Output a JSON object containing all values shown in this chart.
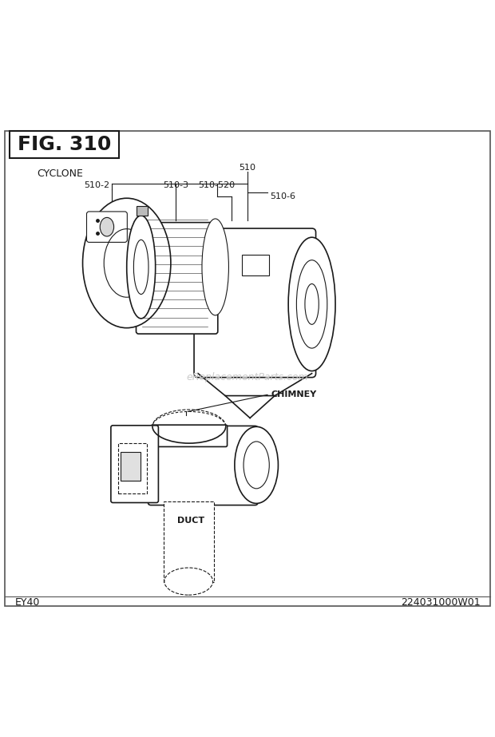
{
  "fig_title": "FIG. 310",
  "section_label": "CYCLONE",
  "footer_left": "EY40",
  "footer_right": "224031000W01",
  "watermark": "eReplacementParts.com",
  "chimney_label": "CHIMNEY",
  "duct_label": "DUCT",
  "bg_color": "#ffffff",
  "line_color": "#1a1a1a",
  "border_color": "#555555"
}
